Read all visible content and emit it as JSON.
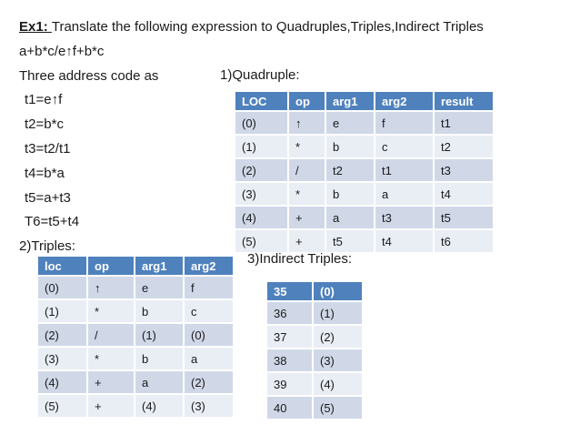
{
  "slide": {
    "title_prefix": "Ex1: ",
    "title_rest": "Translate the following expression to Quadruples,Triples,Indirect Triples",
    "expression": "a+b*c/e↑f+b*c",
    "three_address_label": "Three address code as",
    "code_lines": [
      "t1=e↑f",
      "t2=b*c",
      "t3=t2/t1",
      "t4=b*a",
      "t5=a+t3",
      "T6=t5+t4"
    ],
    "section1_label": "1)Quadruple:",
    "section2_label": "2)Triples:",
    "section3_label": "3)Indirect Triples:"
  },
  "colors": {
    "header_bg": "#4f81bd",
    "header_text": "#ffffff",
    "row_dark": "#d0d8e8",
    "row_light": "#e9edf4",
    "body_text": "#1a1a1a"
  },
  "quadruple_table": {
    "headers": [
      "LOC",
      "op",
      "arg1",
      "arg2",
      "result"
    ],
    "rows": [
      [
        "(0)",
        "↑",
        "e",
        "f",
        "t1"
      ],
      [
        "(1)",
        "*",
        "b",
        "c",
        "t2"
      ],
      [
        "(2)",
        "/",
        "t2",
        "t1",
        "t3"
      ],
      [
        "(3)",
        "*",
        "b",
        "a",
        "t4"
      ],
      [
        "(4)",
        "+",
        "a",
        "t3",
        "t5"
      ],
      [
        "(5)",
        "+",
        "t5",
        "t4",
        "t6"
      ]
    ]
  },
  "triples_table": {
    "headers": [
      "loc",
      "op",
      "arg1",
      "arg2"
    ],
    "rows": [
      [
        "(0)",
        "↑",
        "e",
        "f"
      ],
      [
        "(1)",
        "*",
        "b",
        "c"
      ],
      [
        "(2)",
        "/",
        "(1)",
        "(0)"
      ],
      [
        "(3)",
        "*",
        "b",
        "a"
      ],
      [
        "(4)",
        "+",
        "a",
        "(2)"
      ],
      [
        "(5)",
        "+",
        "(4)",
        "(3)"
      ]
    ]
  },
  "indirect_table": {
    "headers": [
      "35",
      "(0)"
    ],
    "rows": [
      [
        "36",
        "(1)"
      ],
      [
        "37",
        "(2)"
      ],
      [
        "38",
        "(3)"
      ],
      [
        "39",
        "(4)"
      ],
      [
        "40",
        "(5)"
      ]
    ]
  }
}
